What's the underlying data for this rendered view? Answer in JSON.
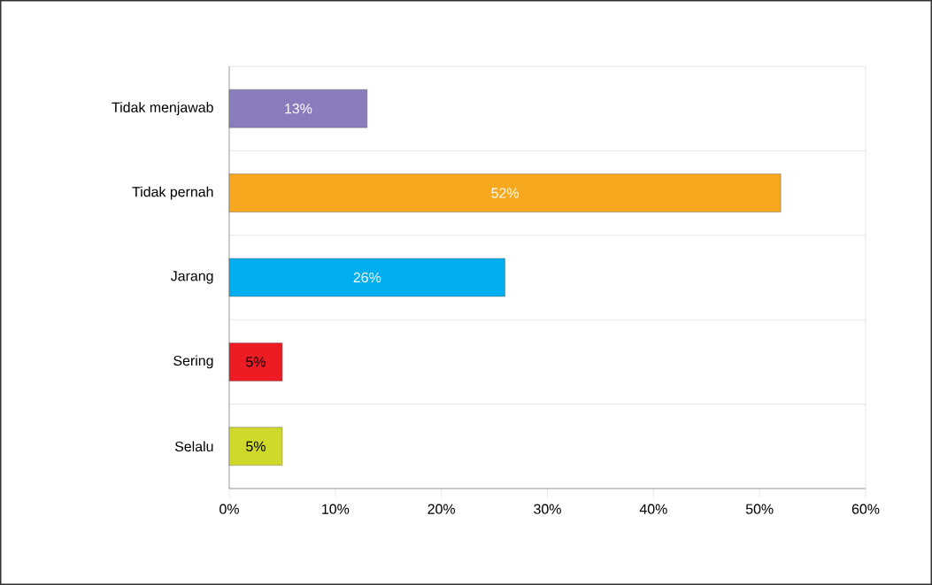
{
  "chart_data": {
    "type": "bar",
    "orientation": "horizontal",
    "categories": [
      "Tidak menjawab",
      "Tidak pernah",
      "Jarang",
      "Sering",
      "Selalu"
    ],
    "values": [
      13,
      52,
      26,
      5,
      5
    ],
    "colors": [
      "#8b7dbd",
      "#f6a81f",
      "#00aeef",
      "#ed1c24",
      "#cfd92b"
    ],
    "value_labels": [
      "13%",
      "52%",
      "26%",
      "5%",
      "5%"
    ],
    "xlim": [
      0,
      60
    ],
    "xticks": [
      {
        "value": 0,
        "label": "0%"
      },
      {
        "value": 10,
        "label": "10%"
      },
      {
        "value": 20,
        "label": "20%"
      },
      {
        "value": 30,
        "label": "30%"
      },
      {
        "value": 40,
        "label": "40%"
      },
      {
        "value": 50,
        "label": "50%"
      },
      {
        "value": 60,
        "label": "60%"
      }
    ],
    "grid": "y"
  }
}
